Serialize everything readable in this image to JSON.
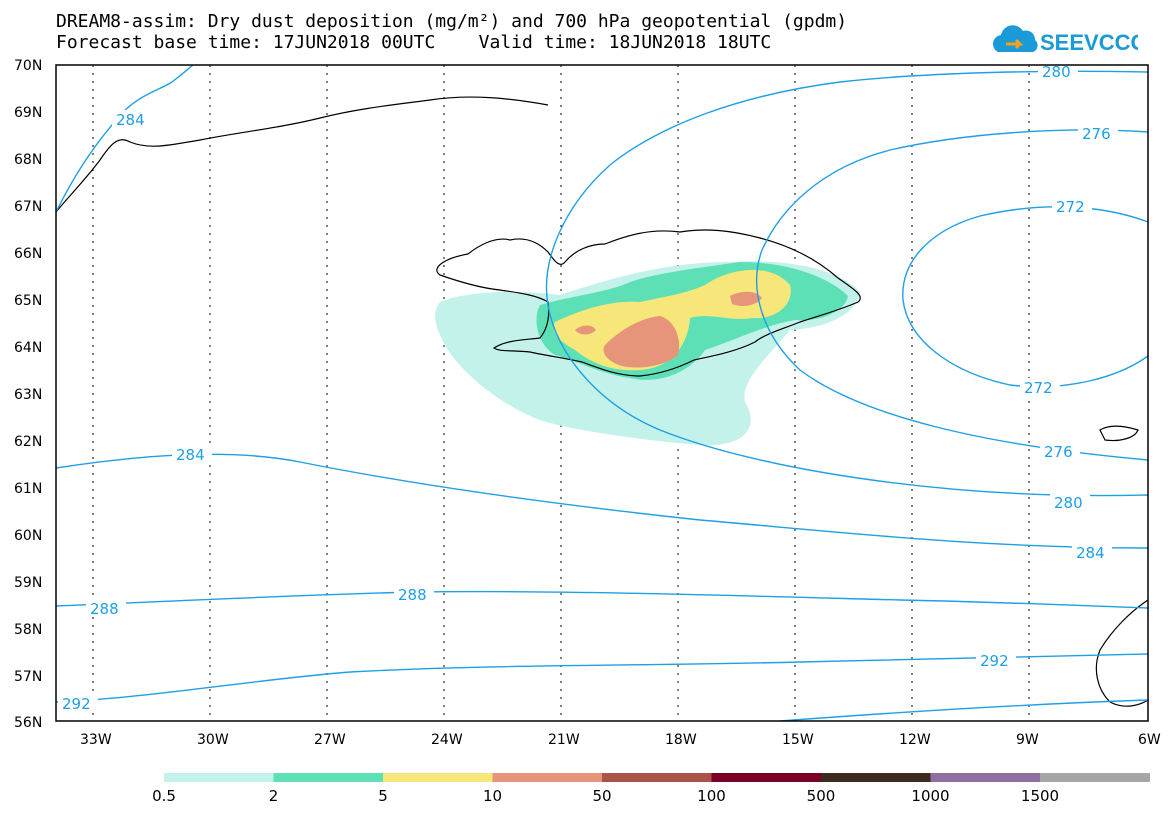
{
  "title": {
    "line1": "DREAM8-assim: Dry dust deposition (mg/m²) and 700 hPa geopotential (gpdm)",
    "line2": "Forecast base time: 17JUN2018 00UTC    Valid time: 18JUN2018 18UTC"
  },
  "logo": {
    "text": "SEEVCCC",
    "icon": "cloud-arrow-icon",
    "color": "#1a9ad6"
  },
  "map": {
    "lat_labels": [
      "70N",
      "69N",
      "68N",
      "67N",
      "66N",
      "65N",
      "64N",
      "63N",
      "62N",
      "61N",
      "60N",
      "59N",
      "58N",
      "57N",
      "56N"
    ],
    "lon_labels": [
      "33W",
      "30W",
      "27W",
      "24W",
      "21W",
      "18W",
      "15W",
      "12W",
      "9W",
      "6W"
    ],
    "contour_color": "#1e9fe6",
    "contour_labels": {
      "c280_top": "280",
      "c276_top": "276",
      "c272_top": "272",
      "c272_bottom": "272",
      "c276_bottom": "276",
      "c280_right": "280",
      "c284_right": "284",
      "c284_mid": "284",
      "c284_nw": "284",
      "c288_left": "288",
      "c288_mid": "288",
      "c292_right": "292",
      "c292_left": "292"
    }
  },
  "legend": {
    "colors": [
      "#c3f2ea",
      "#5ee0b6",
      "#f7e77a",
      "#e6957a",
      "#a8544b",
      "#7a0026",
      "#3d2b1f",
      "#8e6fa0",
      "#a6a6a6"
    ],
    "labels": [
      "0.5",
      "2",
      "5",
      "10",
      "50",
      "100",
      "500",
      "1000",
      "1500"
    ]
  }
}
